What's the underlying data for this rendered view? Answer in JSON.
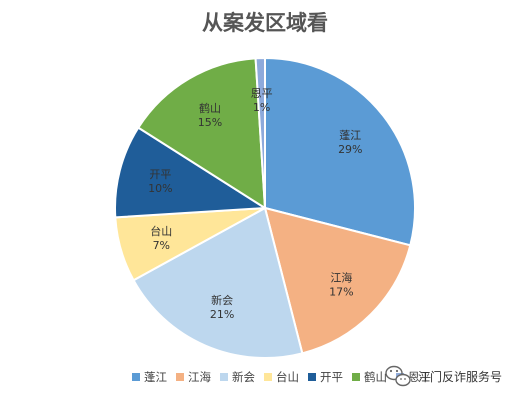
{
  "chart_data": {
    "type": "pie",
    "title": "从案发区域看",
    "categories": [
      "蓬江",
      "江海",
      "新会",
      "台山",
      "开平",
      "鹤山",
      "恩平"
    ],
    "values": [
      29,
      17,
      21,
      7,
      10,
      15,
      1
    ],
    "value_labels": [
      "29%",
      "17%",
      "21%",
      "7%",
      "10%",
      "15%",
      "1%"
    ],
    "colors": [
      "#5b9bd5",
      "#f4b183",
      "#bdd7ee",
      "#ffe699",
      "#1f5d99",
      "#70ad47",
      "#8eaadb"
    ],
    "legend_position": "bottom"
  },
  "watermark": {
    "text": "江门反诈服务号"
  }
}
